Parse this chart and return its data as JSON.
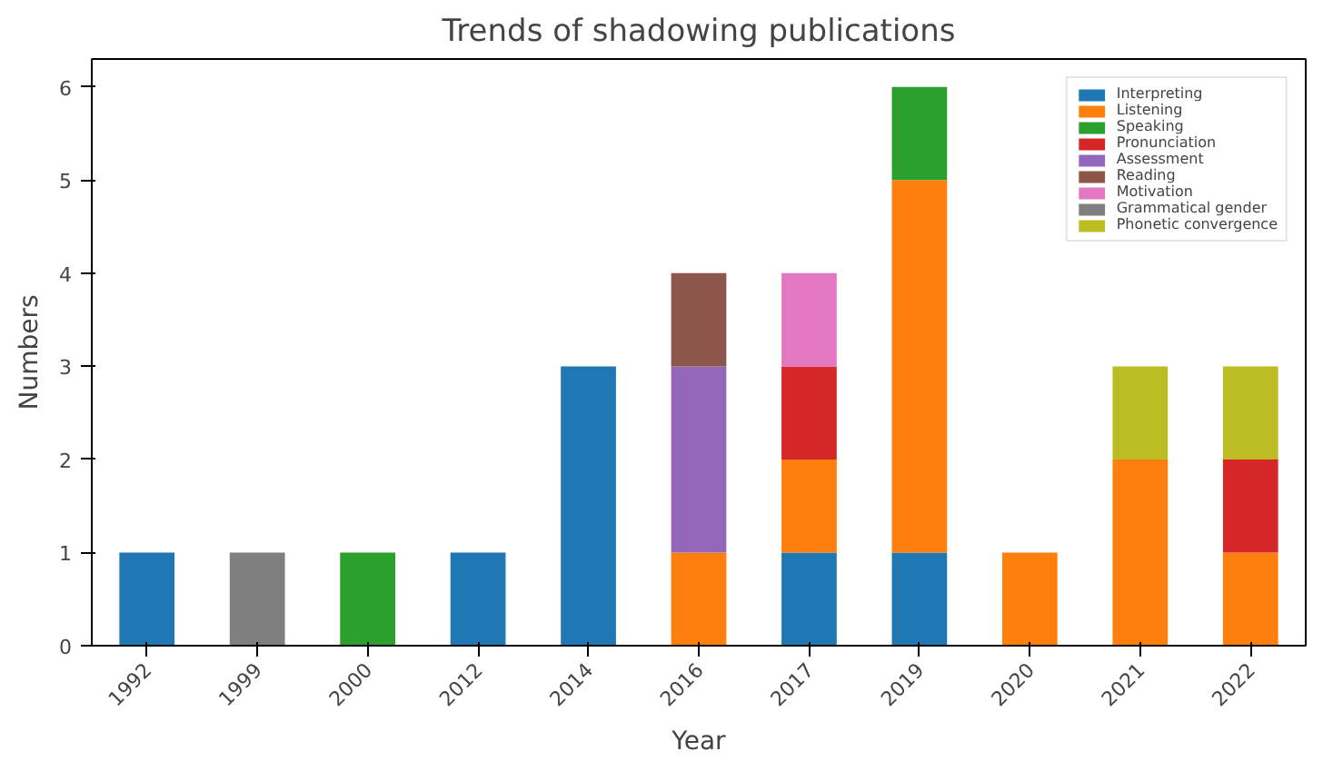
{
  "chart_data": {
    "type": "bar",
    "stacked": true,
    "title": "Trends of shadowing publications",
    "xlabel": "Year",
    "ylabel": "Numbers",
    "categories": [
      "1992",
      "1999",
      "2000",
      "2012",
      "2014",
      "2016",
      "2017",
      "2019",
      "2020",
      "2021",
      "2022"
    ],
    "ylim": [
      0,
      6.3
    ],
    "yticks": [
      0,
      1,
      2,
      3,
      4,
      5,
      6
    ],
    "grid": false,
    "legend": "top right",
    "series": [
      {
        "name": "Interpreting",
        "color": "#1f77b4",
        "values": [
          1,
          null,
          null,
          1,
          3,
          null,
          1,
          1,
          null,
          null,
          null
        ]
      },
      {
        "name": "Listening",
        "color": "#ff7f0e",
        "values": [
          null,
          null,
          null,
          null,
          null,
          1,
          1,
          4,
          1,
          2,
          1
        ]
      },
      {
        "name": "Speaking",
        "color": "#2ca02c",
        "values": [
          null,
          null,
          1,
          null,
          null,
          null,
          null,
          1,
          null,
          null,
          null
        ]
      },
      {
        "name": "Pronunciation",
        "color": "#d62728",
        "values": [
          null,
          null,
          null,
          null,
          null,
          null,
          1,
          null,
          null,
          null,
          1
        ]
      },
      {
        "name": "Assessment",
        "color": "#9467bd",
        "values": [
          null,
          null,
          null,
          null,
          null,
          2,
          null,
          null,
          null,
          null,
          null
        ]
      },
      {
        "name": "Reading",
        "color": "#8c564b",
        "values": [
          null,
          null,
          null,
          null,
          null,
          1,
          null,
          null,
          null,
          null,
          null
        ]
      },
      {
        "name": "Motivation",
        "color": "#e377c2",
        "values": [
          null,
          null,
          null,
          null,
          null,
          null,
          1,
          null,
          null,
          null,
          null
        ]
      },
      {
        "name": "Grammatical gender",
        "color": "#7f7f7f",
        "values": [
          null,
          1,
          null,
          null,
          null,
          null,
          null,
          null,
          null,
          null,
          null
        ]
      },
      {
        "name": "Phonetic convergence",
        "color": "#bcbd22",
        "values": [
          null,
          null,
          null,
          null,
          null,
          null,
          null,
          null,
          null,
          1,
          1
        ]
      }
    ]
  }
}
